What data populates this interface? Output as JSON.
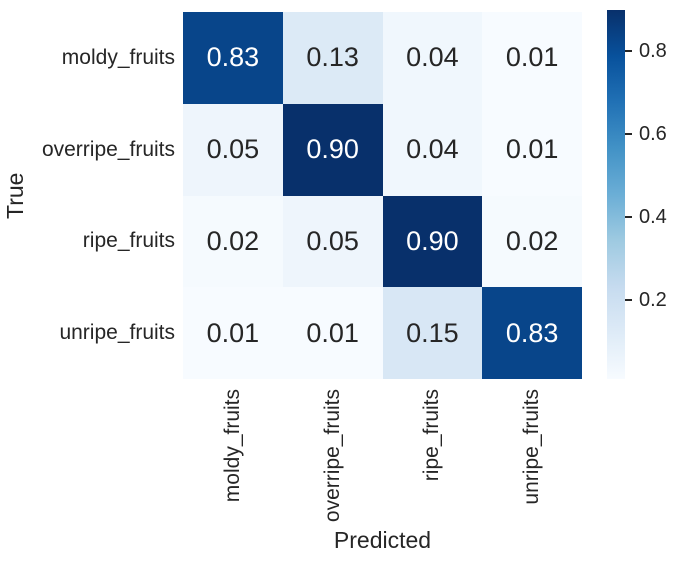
{
  "figure": {
    "background_color": "#ffffff",
    "axis_text_color": "#262626"
  },
  "chart_data": {
    "type": "heatmap",
    "title": "",
    "xlabel": "Predicted",
    "ylabel": "True",
    "categories": [
      "moldy_fruits",
      "overripe_fruits",
      "ripe_fruits",
      "unripe_fruits"
    ],
    "matrix": [
      [
        0.83,
        0.13,
        0.04,
        0.01
      ],
      [
        0.05,
        0.9,
        0.04,
        0.01
      ],
      [
        0.02,
        0.05,
        0.9,
        0.02
      ],
      [
        0.01,
        0.01,
        0.15,
        0.83
      ]
    ],
    "value_decimals": 2,
    "vmin": 0.01,
    "vmax": 0.9,
    "colormap": "Blues",
    "grid": false,
    "cell_colors": [
      [
        "#08458a",
        "#dceaf6",
        "#f0f7fd",
        "#f7fbff"
      ],
      [
        "#eef5fc",
        "#08306b",
        "#f0f7fd",
        "#f7fbff"
      ],
      [
        "#f5fafe",
        "#eef5fc",
        "#08306b",
        "#f5fafe"
      ],
      [
        "#f7fbff",
        "#f7fbff",
        "#d8e7f5",
        "#08458a"
      ]
    ],
    "cell_text_colors": [
      [
        "#ffffff",
        "#262626",
        "#262626",
        "#262626"
      ],
      [
        "#262626",
        "#ffffff",
        "#262626",
        "#262626"
      ],
      [
        "#262626",
        "#262626",
        "#ffffff",
        "#262626"
      ],
      [
        "#262626",
        "#262626",
        "#262626",
        "#ffffff"
      ]
    ],
    "colorbar": {
      "position": "right",
      "tick_values": [
        0.8,
        0.6,
        0.4,
        0.2
      ],
      "tick_labels": [
        "0.8",
        "0.6",
        "0.4",
        "0.2"
      ],
      "gradient_top_to_bottom": [
        "#08306b",
        "#08519c",
        "#2171b5",
        "#4292c6",
        "#6baed6",
        "#9ecae1",
        "#c6dbef",
        "#deebf7",
        "#f7fbff"
      ]
    }
  }
}
